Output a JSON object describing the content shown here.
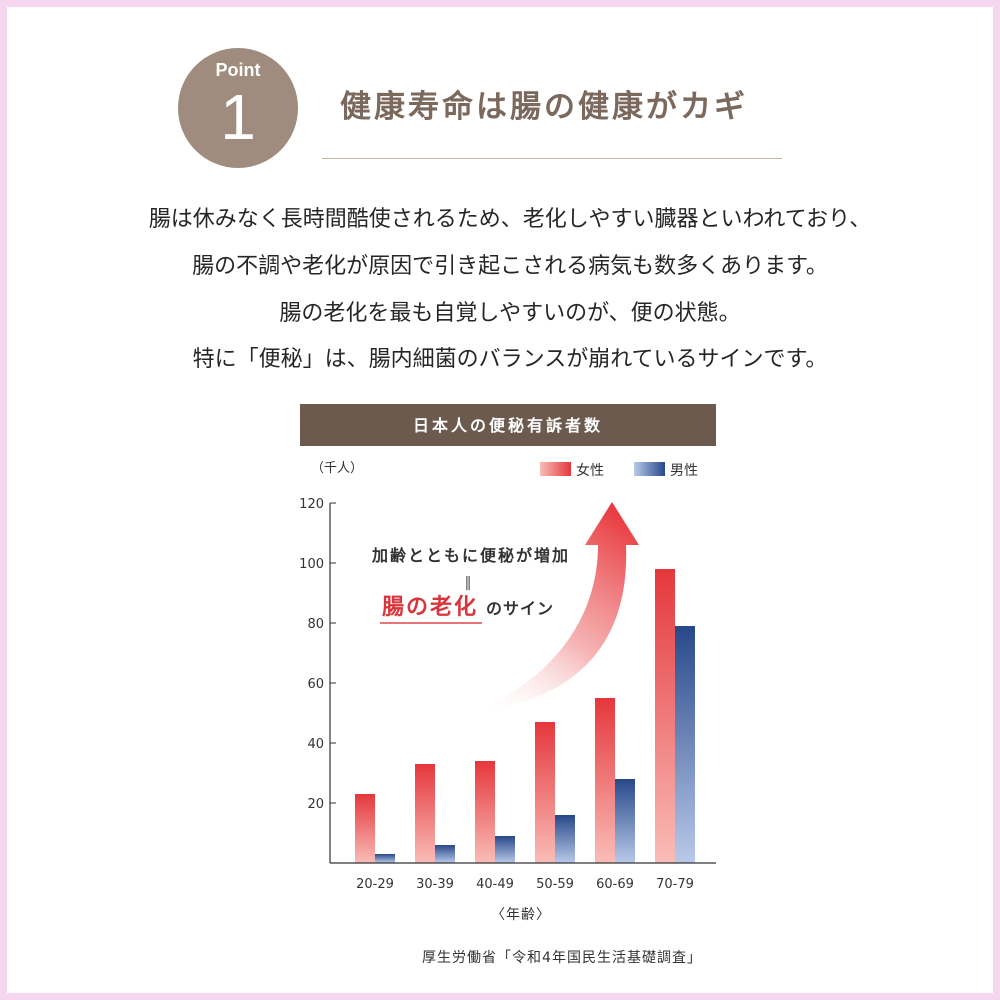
{
  "point_badge": {
    "label": "Point",
    "number": "1"
  },
  "heading": {
    "title": "健康寿命は腸の健康がカギ"
  },
  "body": {
    "lines": [
      "腸は休みなく長時間酷使されるため、老化しやすい臓器といわれており、",
      "腸の不調や老化が原因で引き起こされる病気も数多くあります。",
      "腸の老化を最も自覚しやすいのが、便の状態。",
      "特に「便秘」は、腸内細菌のバランスが崩れているサインです。"
    ]
  },
  "colors": {
    "frame": "#f4d6ee",
    "badge": "#9f8c7e",
    "heading_text": "#7a695c",
    "divider": "#c2b6ab",
    "chart_title_bar": "#6b5a4d",
    "highlight": "#d8363c",
    "arrow": "#e8383d"
  },
  "chart_data": {
    "type": "bar",
    "title": "日本人の便秘有訴者数",
    "ylabel": "（千人）",
    "xlabel": "〈年齢〉",
    "categories": [
      "20-29",
      "30-39",
      "40-49",
      "50-59",
      "60-69",
      "70-79"
    ],
    "series": [
      {
        "name": "女性",
        "values": [
          23,
          33,
          34,
          47,
          55,
          98
        ],
        "color_top": "#e5373c",
        "color_bottom": "#f9bdb8"
      },
      {
        "name": "男性",
        "values": [
          3,
          6,
          9,
          16,
          28,
          79
        ],
        "color_top": "#274889",
        "color_bottom": "#b9c9e9"
      }
    ],
    "ylim": [
      0,
      120
    ],
    "yticks": [
      20,
      40,
      60,
      80,
      100,
      120
    ],
    "grid": false,
    "legend_position": "top-right",
    "annotation": {
      "text": "加齢とともに便秘が増加",
      "equals": "‖",
      "highlight": "腸の老化",
      "suffix": "のサイン"
    },
    "source": "厚生労働省「令和4年国民生活基礎調査」"
  }
}
